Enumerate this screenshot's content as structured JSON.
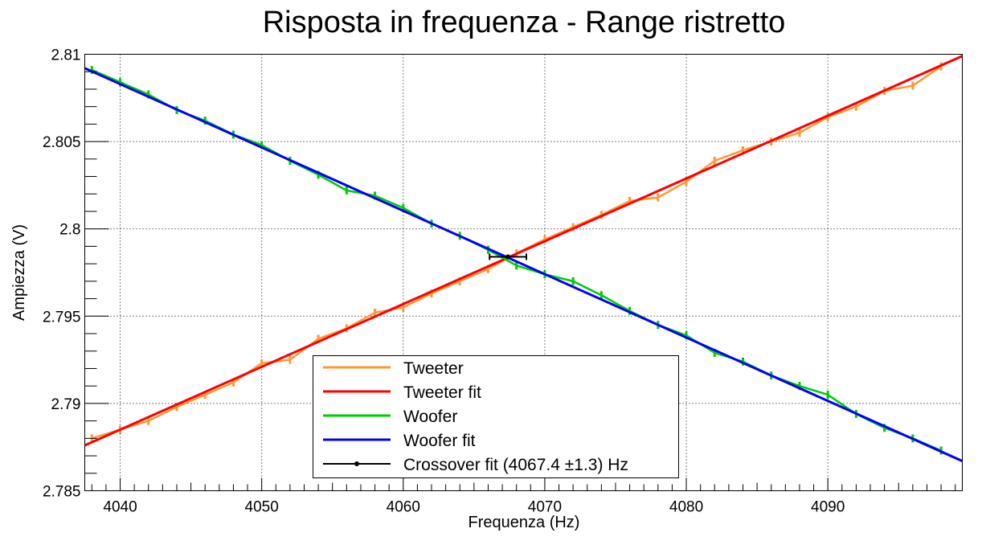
{
  "chart_data": {
    "type": "line",
    "title": "Risposta in frequenza - Range ristretto",
    "xlabel": "Frequenza (Hz)",
    "ylabel": "Ampiezza (V)",
    "xlim": [
      4037.5,
      4099.5
    ],
    "ylim": [
      2.785,
      2.81
    ],
    "xticks": [
      4040,
      4050,
      4060,
      4070,
      4080,
      4090
    ],
    "xtick_labels": [
      "4040",
      "4050",
      "4060",
      "4070",
      "4080",
      "4090"
    ],
    "yticks": [
      2.785,
      2.79,
      2.795,
      2.8,
      2.805,
      2.81
    ],
    "ytick_labels": [
      "2.785",
      "2.79",
      "2.795",
      "2.8",
      "2.805",
      "2.81"
    ],
    "grid": true,
    "legend_position": "bottom-center",
    "series": [
      {
        "name": "Tweeter",
        "color": "#ff9933",
        "x": [
          4038,
          4040,
          4042,
          4044,
          4046,
          4048,
          4050,
          4052,
          4054,
          4056,
          4058,
          4060,
          4062,
          4064,
          4066,
          4068,
          4070,
          4072,
          4074,
          4076,
          4078,
          4080,
          4082,
          4084,
          4086,
          4088,
          4090,
          4092,
          4094,
          4096,
          4098
        ],
        "y": [
          2.788,
          2.7885,
          2.789,
          2.7898,
          2.7905,
          2.7912,
          2.7923,
          2.7925,
          2.7937,
          2.7943,
          2.7952,
          2.7955,
          2.7963,
          2.797,
          2.7977,
          2.7986,
          2.7994,
          2.8001,
          2.8008,
          2.8016,
          2.8018,
          2.8027,
          2.8039,
          2.8045,
          2.805,
          2.8055,
          2.8064,
          2.807,
          2.8079,
          2.8082,
          2.8093
        ]
      },
      {
        "name": "Tweeter fit",
        "color": "#ff0000",
        "x": [
          4037.5,
          4099.5
        ],
        "y": [
          2.7876,
          2.8099
        ]
      },
      {
        "name": "Woofer",
        "color": "#00cc00",
        "x": [
          4038,
          4040,
          4042,
          4044,
          4046,
          4048,
          4050,
          4052,
          4054,
          4056,
          4058,
          4060,
          4062,
          4064,
          4066,
          4068,
          4070,
          4072,
          4074,
          4076,
          4078,
          4080,
          4082,
          4084,
          4086,
          4088,
          4090,
          4092,
          4094,
          4096,
          4098
        ],
        "y": [
          2.8091,
          2.8084,
          2.8077,
          2.8068,
          2.8062,
          2.8054,
          2.8048,
          2.8039,
          2.8031,
          2.8022,
          2.8019,
          2.8012,
          2.8003,
          2.7996,
          2.7988,
          2.7979,
          2.7974,
          2.797,
          2.7962,
          2.7953,
          2.7945,
          2.7939,
          2.7929,
          2.7924,
          2.7916,
          2.791,
          2.7905,
          2.7894,
          2.7886,
          2.788,
          2.7873
        ]
      },
      {
        "name": "Woofer fit",
        "color": "#0000ff",
        "x": [
          4037.5,
          4099.5
        ],
        "y": [
          2.8092,
          2.7867
        ]
      },
      {
        "name": "Crossover fit (4067.4 ±1.3) Hz",
        "color": "#000000",
        "x": [
          4067.4
        ],
        "y": [
          2.7984
        ],
        "x_err": [
          1.3
        ]
      }
    ]
  }
}
